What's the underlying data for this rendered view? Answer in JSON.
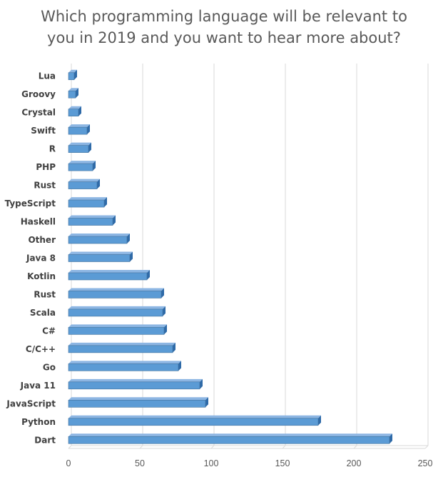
{
  "chart_data": {
    "type": "bar",
    "orientation": "horizontal",
    "title_lines": [
      "Which programming language will be relevant to",
      "you in 2019 and you want to hear more about?"
    ],
    "categories": [
      "Lua",
      "Groovy",
      "Crystal",
      "Swift",
      "R",
      "PHP",
      "Rust",
      "TypeScript",
      "Haskell",
      "Other",
      "Java 8",
      "Kotlin",
      "Rust",
      "Scala",
      "C#",
      "C/C++",
      "Go",
      "Java 11",
      "JavaScript",
      "Python",
      "Dart"
    ],
    "values": [
      4,
      5,
      7,
      13,
      14,
      17,
      20,
      25,
      31,
      41,
      43,
      55,
      65,
      66,
      67,
      73,
      77,
      92,
      96,
      175,
      225
    ],
    "xlim": [
      0,
      250
    ],
    "xticks": [
      0,
      50,
      100,
      150,
      200,
      250
    ],
    "grid": true,
    "bar_color": "#5b9bd5"
  }
}
